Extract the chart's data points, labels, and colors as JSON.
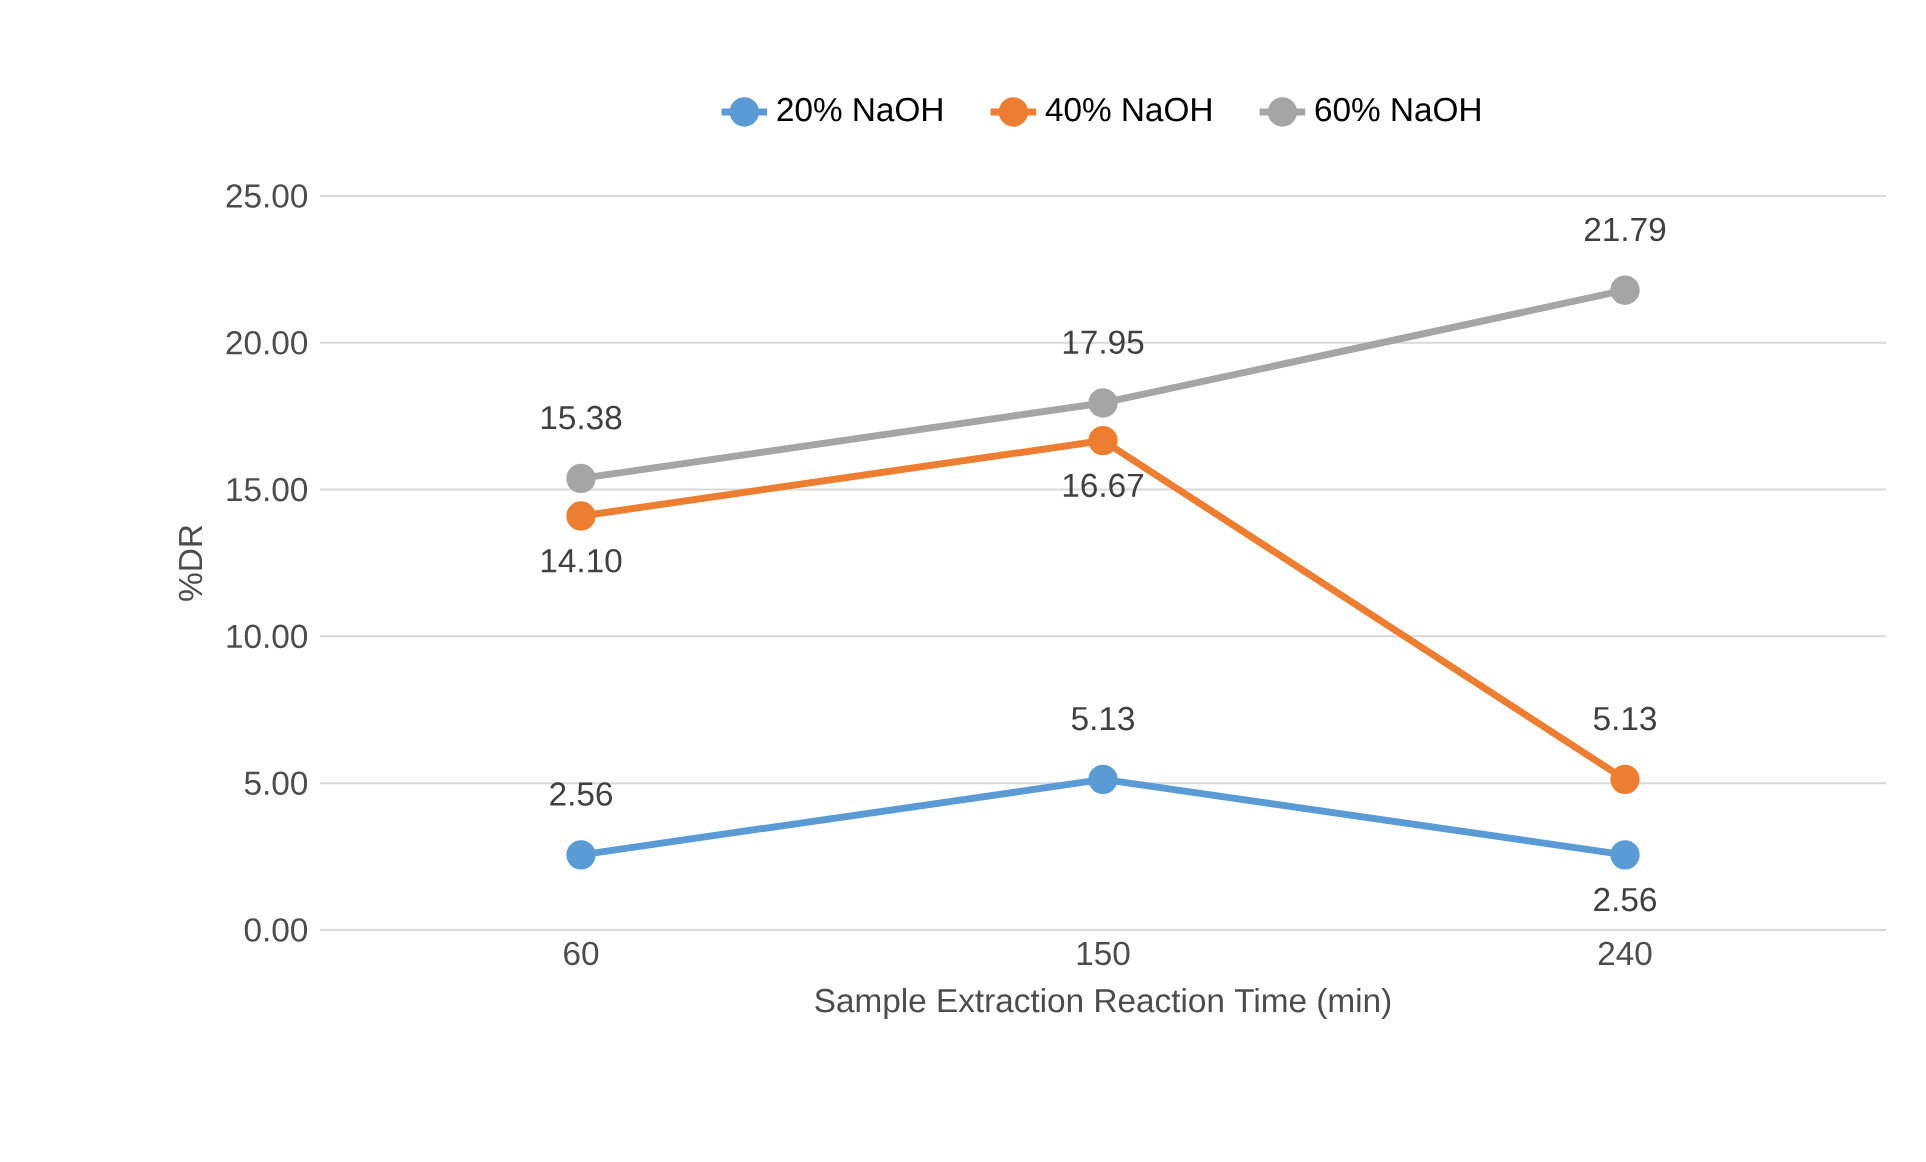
{
  "chart_data": {
    "type": "line",
    "xlabel": "Sample Extraction Reaction Time (min)",
    "ylabel": "%DR",
    "categories": [
      "60",
      "150",
      "240"
    ],
    "series": [
      {
        "name": "20% NaOH",
        "color": "#5b9bd5",
        "values": [
          2.56,
          5.13,
          2.56
        ],
        "value_labels": [
          "2.56",
          "5.13",
          "2.56"
        ]
      },
      {
        "name": "40% NaOH",
        "color": "#ed7d31",
        "values": [
          14.1,
          16.67,
          5.13
        ],
        "value_labels": [
          "14.10",
          "16.67",
          "5.13"
        ]
      },
      {
        "name": "60% NaOH",
        "color": "#a5a5a5",
        "values": [
          15.38,
          17.95,
          21.79
        ],
        "value_labels": [
          "15.38",
          "17.95",
          "21.79"
        ]
      }
    ],
    "ylim": [
      0,
      25
    ],
    "yticks": [
      {
        "value": 0,
        "label": "0.00"
      },
      {
        "value": 5,
        "label": "5.00"
      },
      {
        "value": 10,
        "label": "10.00"
      },
      {
        "value": 15,
        "label": "15.00"
      },
      {
        "value": 20,
        "label": "20.00"
      },
      {
        "value": 25,
        "label": "25.00"
      }
    ],
    "grid": "y",
    "legend": "top",
    "marker": "circle",
    "line_style": "solid"
  }
}
